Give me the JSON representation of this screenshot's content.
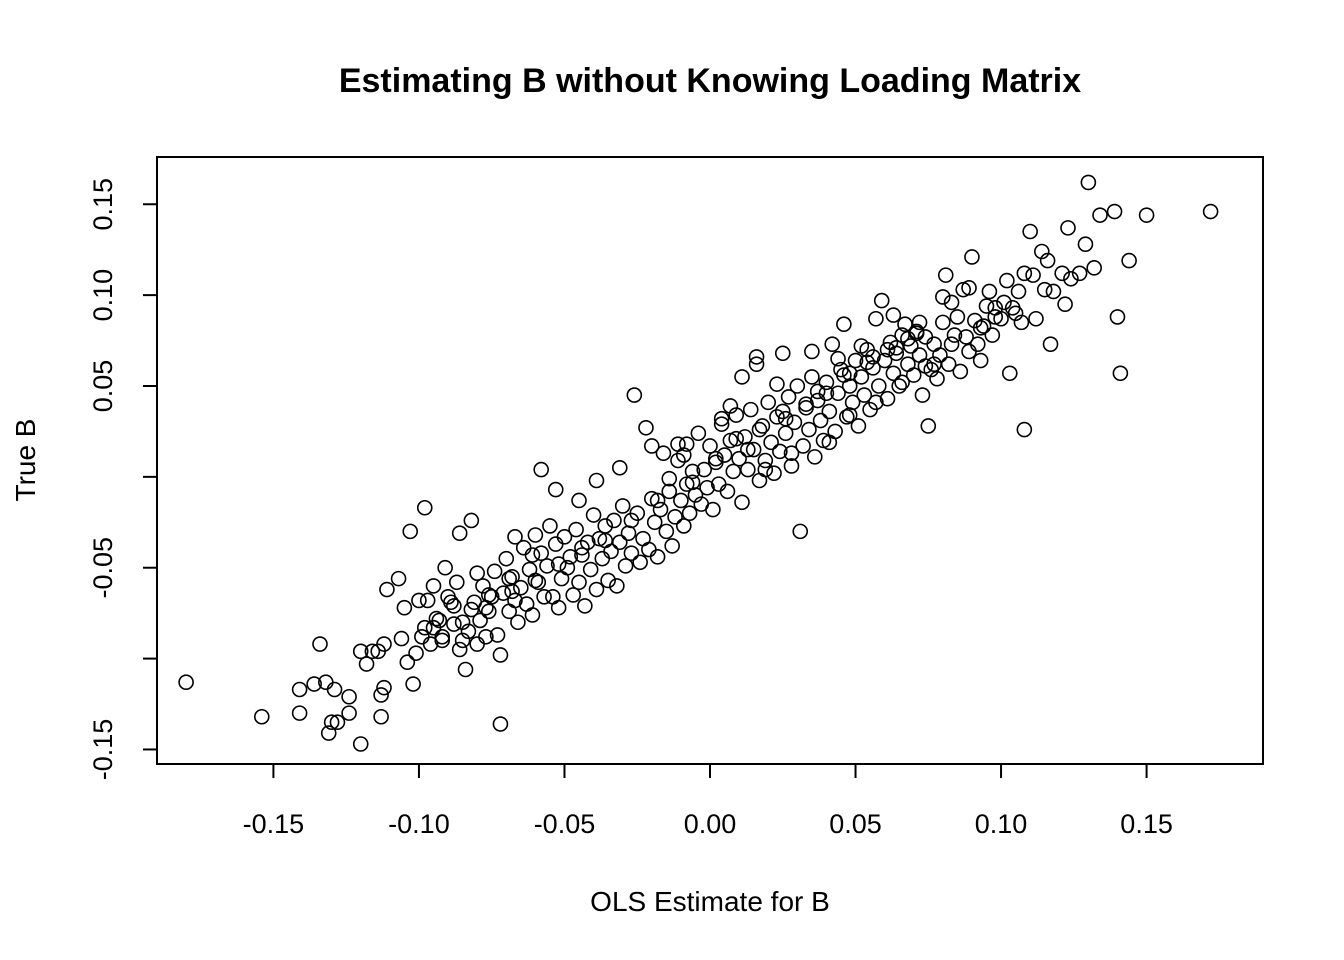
{
  "chart_data": {
    "type": "scatter",
    "title": "Estimating B without Knowing Loading Matrix",
    "xlabel": "OLS Estimate for B",
    "ylabel": "True B",
    "xlim": [
      -0.19,
      0.19
    ],
    "ylim": [
      -0.158,
      0.176
    ],
    "xticks": [
      -0.15,
      -0.1,
      -0.05,
      0.0,
      0.05,
      0.1,
      0.15
    ],
    "xtick_labels": [
      "-0.15",
      "-0.10",
      "-0.05",
      "0.00",
      "0.05",
      "0.10",
      "0.15"
    ],
    "yticks": [
      -0.15,
      -0.1,
      -0.05,
      0.0,
      0.05,
      0.1,
      0.15
    ],
    "ytick_labels": [
      "-0.15",
      "",
      "-0.05",
      "",
      "0.05",
      "0.10",
      "0.15"
    ],
    "grid": false,
    "marker": "open-circle",
    "marker_color": "#000000",
    "points": [
      [
        -0.18,
        -0.113
      ],
      [
        -0.154,
        -0.132
      ],
      [
        -0.141,
        -0.13
      ],
      [
        -0.141,
        -0.117
      ],
      [
        -0.136,
        -0.114
      ],
      [
        -0.134,
        -0.092
      ],
      [
        -0.132,
        -0.113
      ],
      [
        -0.131,
        -0.141
      ],
      [
        -0.13,
        -0.135
      ],
      [
        -0.129,
        -0.117
      ],
      [
        -0.128,
        -0.135
      ],
      [
        -0.124,
        -0.121
      ],
      [
        -0.124,
        -0.13
      ],
      [
        -0.12,
        -0.147
      ],
      [
        -0.12,
        -0.096
      ],
      [
        -0.116,
        -0.096
      ],
      [
        -0.114,
        -0.096
      ],
      [
        -0.113,
        -0.132
      ],
      [
        -0.113,
        -0.12
      ],
      [
        -0.112,
        -0.116
      ],
      [
        -0.112,
        -0.092
      ],
      [
        -0.111,
        -0.062
      ],
      [
        -0.107,
        -0.056
      ],
      [
        -0.105,
        -0.072
      ],
      [
        -0.104,
        -0.102
      ],
      [
        -0.102,
        -0.114
      ],
      [
        -0.101,
        -0.097
      ],
      [
        -0.1,
        -0.068
      ],
      [
        -0.099,
        -0.088
      ],
      [
        -0.098,
        -0.083
      ],
      [
        -0.097,
        -0.068
      ],
      [
        -0.096,
        -0.092
      ],
      [
        -0.095,
        -0.06
      ],
      [
        -0.094,
        -0.078
      ],
      [
        -0.093,
        -0.079
      ],
      [
        -0.092,
        -0.09
      ],
      [
        -0.091,
        -0.05
      ],
      [
        -0.09,
        -0.066
      ],
      [
        -0.089,
        -0.069
      ],
      [
        -0.088,
        -0.081
      ],
      [
        -0.087,
        -0.058
      ],
      [
        -0.086,
        -0.095
      ],
      [
        -0.085,
        -0.09
      ],
      [
        -0.084,
        -0.106
      ],
      [
        -0.083,
        -0.085
      ],
      [
        -0.082,
        -0.073
      ],
      [
        -0.081,
        -0.069
      ],
      [
        -0.08,
        -0.092
      ],
      [
        -0.08,
        -0.053
      ],
      [
        -0.079,
        -0.079
      ],
      [
        -0.078,
        -0.06
      ],
      [
        -0.077,
        -0.088
      ],
      [
        -0.076,
        -0.074
      ],
      [
        -0.075,
        -0.066
      ],
      [
        -0.074,
        -0.052
      ],
      [
        -0.073,
        -0.087
      ],
      [
        -0.072,
        -0.098
      ],
      [
        -0.072,
        -0.136
      ],
      [
        -0.071,
        -0.064
      ],
      [
        -0.07,
        -0.045
      ],
      [
        -0.069,
        -0.074
      ],
      [
        -0.068,
        -0.055
      ],
      [
        -0.067,
        -0.068
      ],
      [
        -0.066,
        -0.08
      ],
      [
        -0.065,
        -0.061
      ],
      [
        -0.064,
        -0.039
      ],
      [
        -0.063,
        -0.07
      ],
      [
        -0.062,
        -0.051
      ],
      [
        -0.061,
        -0.076
      ],
      [
        -0.06,
        -0.032
      ],
      [
        -0.059,
        -0.058
      ],
      [
        -0.058,
        -0.042
      ],
      [
        -0.057,
        -0.066
      ],
      [
        -0.056,
        -0.049
      ],
      [
        -0.055,
        -0.027
      ],
      [
        -0.054,
        -0.066
      ],
      [
        -0.053,
        -0.037
      ],
      [
        -0.052,
        -0.072
      ],
      [
        -0.051,
        -0.056
      ],
      [
        -0.05,
        -0.033
      ],
      [
        -0.049,
        -0.05
      ],
      [
        -0.048,
        -0.044
      ],
      [
        -0.047,
        -0.065
      ],
      [
        -0.046,
        -0.029
      ],
      [
        -0.045,
        -0.058
      ],
      [
        -0.044,
        -0.043
      ],
      [
        -0.043,
        -0.071
      ],
      [
        -0.042,
        -0.036
      ],
      [
        -0.041,
        -0.051
      ],
      [
        -0.04,
        -0.021
      ],
      [
        -0.039,
        -0.062
      ],
      [
        -0.038,
        -0.034
      ],
      [
        -0.037,
        -0.045
      ],
      [
        -0.036,
        -0.027
      ],
      [
        -0.035,
        -0.057
      ],
      [
        -0.034,
        -0.041
      ],
      [
        -0.033,
        -0.024
      ],
      [
        -0.032,
        -0.06
      ],
      [
        -0.031,
        -0.036
      ],
      [
        -0.03,
        -0.016
      ],
      [
        -0.029,
        -0.049
      ],
      [
        -0.028,
        -0.031
      ],
      [
        -0.027,
        -0.042
      ],
      [
        -0.026,
        0.045
      ],
      [
        -0.025,
        -0.02
      ],
      [
        -0.024,
        -0.047
      ],
      [
        -0.023,
        -0.034
      ],
      [
        -0.022,
        0.027
      ],
      [
        -0.021,
        -0.04
      ],
      [
        -0.02,
        -0.012
      ],
      [
        -0.019,
        -0.025
      ],
      [
        -0.018,
        -0.044
      ],
      [
        -0.017,
        -0.018
      ],
      [
        -0.016,
        0.013
      ],
      [
        -0.015,
        -0.03
      ],
      [
        -0.014,
        -0.008
      ],
      [
        -0.013,
        -0.038
      ],
      [
        -0.012,
        -0.022
      ],
      [
        -0.011,
        0.009
      ],
      [
        -0.01,
        -0.013
      ],
      [
        -0.009,
        -0.027
      ],
      [
        -0.008,
        -0.004
      ],
      [
        -0.007,
        -0.02
      ],
      [
        -0.006,
        0.003
      ],
      [
        -0.005,
        -0.01
      ],
      [
        -0.004,
        0.024
      ],
      [
        -0.003,
        -0.015
      ],
      [
        -0.002,
        0.004
      ],
      [
        -0.001,
        -0.006
      ],
      [
        0.0,
        0.017
      ],
      [
        0.001,
        -0.018
      ],
      [
        0.002,
        0.008
      ],
      [
        0.003,
        -0.004
      ],
      [
        0.004,
        0.029
      ],
      [
        0.005,
        0.012
      ],
      [
        0.006,
        -0.008
      ],
      [
        0.007,
        0.02
      ],
      [
        0.008,
        0.003
      ],
      [
        0.009,
        0.034
      ],
      [
        0.01,
        0.01
      ],
      [
        0.011,
        -0.014
      ],
      [
        0.012,
        0.022
      ],
      [
        0.013,
        0.004
      ],
      [
        0.014,
        0.037
      ],
      [
        0.015,
        0.015
      ],
      [
        0.016,
        0.066
      ],
      [
        0.017,
        -0.002
      ],
      [
        0.018,
        0.028
      ],
      [
        0.019,
        0.009
      ],
      [
        0.02,
        0.041
      ],
      [
        0.021,
        0.019
      ],
      [
        0.022,
        0.002
      ],
      [
        0.023,
        0.033
      ],
      [
        0.024,
        0.014
      ],
      [
        0.025,
        0.068
      ],
      [
        0.026,
        0.024
      ],
      [
        0.027,
        0.044
      ],
      [
        0.028,
        0.006
      ],
      [
        0.029,
        0.03
      ],
      [
        0.03,
        0.05
      ],
      [
        0.031,
        -0.03
      ],
      [
        0.032,
        0.017
      ],
      [
        0.033,
        0.038
      ],
      [
        0.034,
        0.026
      ],
      [
        0.035,
        0.055
      ],
      [
        0.036,
        0.011
      ],
      [
        0.037,
        0.042
      ],
      [
        0.038,
        0.031
      ],
      [
        0.039,
        0.02
      ],
      [
        0.04,
        0.052
      ],
      [
        0.041,
        0.036
      ],
      [
        0.042,
        0.073
      ],
      [
        0.043,
        0.025
      ],
      [
        0.044,
        0.046
      ],
      [
        0.045,
        0.059
      ],
      [
        0.046,
        0.084
      ],
      [
        0.047,
        0.033
      ],
      [
        0.048,
        0.05
      ],
      [
        0.049,
        0.041
      ],
      [
        0.05,
        0.064
      ],
      [
        0.051,
        0.028
      ],
      [
        0.052,
        0.055
      ],
      [
        0.053,
        0.045
      ],
      [
        0.054,
        0.07
      ],
      [
        0.055,
        0.037
      ],
      [
        0.056,
        0.06
      ],
      [
        0.057,
        0.087
      ],
      [
        0.058,
        0.05
      ],
      [
        0.059,
        0.097
      ],
      [
        0.06,
        0.064
      ],
      [
        0.061,
        0.043
      ],
      [
        0.062,
        0.074
      ],
      [
        0.063,
        0.057
      ],
      [
        0.064,
        0.068
      ],
      [
        0.065,
        0.05
      ],
      [
        0.066,
        0.078
      ],
      [
        0.067,
        0.084
      ],
      [
        0.068,
        0.062
      ],
      [
        0.069,
        0.072
      ],
      [
        0.07,
        0.056
      ],
      [
        0.071,
        0.08
      ],
      [
        0.072,
        0.067
      ],
      [
        0.073,
        0.045
      ],
      [
        0.074,
        0.077
      ],
      [
        0.075,
        0.028
      ],
      [
        0.076,
        0.059
      ],
      [
        0.077,
        0.073
      ],
      [
        0.078,
        0.054
      ],
      [
        0.079,
        0.067
      ],
      [
        0.08,
        0.085
      ],
      [
        0.081,
        0.111
      ],
      [
        0.082,
        0.062
      ],
      [
        0.083,
        0.096
      ],
      [
        0.084,
        0.078
      ],
      [
        0.085,
        0.088
      ],
      [
        0.086,
        0.058
      ],
      [
        0.087,
        0.103
      ],
      [
        0.088,
        0.077
      ],
      [
        0.089,
        0.069
      ],
      [
        0.09,
        0.121
      ],
      [
        0.091,
        0.086
      ],
      [
        0.092,
        0.073
      ],
      [
        0.093,
        0.064
      ],
      [
        0.094,
        0.083
      ],
      [
        0.095,
        0.094
      ],
      [
        0.096,
        0.102
      ],
      [
        0.097,
        0.078
      ],
      [
        0.098,
        0.088
      ],
      [
        0.1,
        0.087
      ],
      [
        0.101,
        0.096
      ],
      [
        0.102,
        0.108
      ],
      [
        0.103,
        0.057
      ],
      [
        0.104,
        0.093
      ],
      [
        0.105,
        0.09
      ],
      [
        0.106,
        0.102
      ],
      [
        0.107,
        0.085
      ],
      [
        0.108,
        0.112
      ],
      [
        0.108,
        0.026
      ],
      [
        0.11,
        0.135
      ],
      [
        0.111,
        0.111
      ],
      [
        0.112,
        0.087
      ],
      [
        0.114,
        0.124
      ],
      [
        0.115,
        0.103
      ],
      [
        0.116,
        0.119
      ],
      [
        0.117,
        0.073
      ],
      [
        0.118,
        0.102
      ],
      [
        0.121,
        0.112
      ],
      [
        0.122,
        0.095
      ],
      [
        0.123,
        0.137
      ],
      [
        0.124,
        0.109
      ],
      [
        0.127,
        0.112
      ],
      [
        0.129,
        0.128
      ],
      [
        0.13,
        0.162
      ],
      [
        0.132,
        0.115
      ],
      [
        0.134,
        0.144
      ],
      [
        0.139,
        0.146
      ],
      [
        0.14,
        0.088
      ],
      [
        0.141,
        0.057
      ],
      [
        0.144,
        0.119
      ],
      [
        0.15,
        0.144
      ],
      [
        0.172,
        0.146
      ],
      [
        -0.098,
        -0.017
      ],
      [
        -0.103,
        -0.03
      ],
      [
        -0.082,
        -0.024
      ],
      [
        -0.086,
        -0.031
      ],
      [
        -0.067,
        -0.033
      ],
      [
        -0.053,
        -0.007
      ],
      [
        -0.058,
        0.004
      ],
      [
        -0.045,
        -0.013
      ],
      [
        -0.039,
        -0.002
      ],
      [
        -0.031,
        0.005
      ],
      [
        -0.02,
        0.017
      ],
      [
        -0.011,
        0.018
      ],
      [
        0.007,
        0.039
      ],
      [
        0.016,
        0.062
      ],
      [
        0.023,
        0.051
      ],
      [
        0.035,
        0.069
      ],
      [
        0.044,
        0.065
      ],
      [
        0.052,
        0.072
      ],
      [
        0.063,
        0.089
      ],
      [
        0.072,
        0.085
      ],
      [
        0.08,
        0.099
      ],
      [
        0.089,
        0.104
      ],
      [
        0.098,
        0.093
      ],
      [
        0.011,
        0.055
      ],
      [
        0.004,
        0.032
      ],
      [
        -0.008,
        0.018
      ],
      [
        -0.014,
        -0.001
      ],
      [
        0.019,
        0.004
      ],
      [
        0.028,
        0.013
      ],
      [
        0.041,
        0.019
      ],
      [
        0.048,
        0.034
      ],
      [
        0.057,
        0.041
      ],
      [
        0.066,
        0.052
      ],
      [
        0.074,
        0.061
      ],
      [
        0.083,
        0.073
      ],
      [
        0.093,
        0.082
      ],
      [
        -0.061,
        -0.043
      ],
      [
        -0.069,
        -0.056
      ],
      [
        -0.076,
        -0.065
      ],
      [
        -0.088,
        -0.071
      ],
      [
        -0.095,
        -0.083
      ],
      [
        -0.106,
        -0.089
      ],
      [
        -0.118,
        -0.103
      ],
      [
        -0.027,
        -0.024
      ],
      [
        -0.018,
        -0.013
      ],
      [
        -0.006,
        -0.003
      ],
      [
        0.013,
        0.015
      ],
      [
        0.026,
        0.032
      ],
      [
        0.037,
        0.047
      ],
      [
        0.046,
        0.056
      ],
      [
        0.054,
        0.063
      ],
      [
        0.061,
        0.07
      ],
      [
        0.068,
        0.076
      ],
      [
        -0.036,
        -0.035
      ],
      [
        -0.044,
        -0.039
      ],
      [
        -0.052,
        -0.048
      ],
      [
        -0.06,
        -0.057
      ],
      [
        -0.068,
        -0.063
      ],
      [
        -0.077,
        -0.072
      ],
      [
        -0.085,
        -0.08
      ],
      [
        -0.092,
        -0.088
      ],
      [
        -0.009,
        0.012
      ],
      [
        0.002,
        0.01
      ],
      [
        0.009,
        0.021
      ],
      [
        0.017,
        0.026
      ],
      [
        0.025,
        0.036
      ],
      [
        0.033,
        0.04
      ],
      [
        0.04,
        0.046
      ],
      [
        0.048,
        0.057
      ],
      [
        0.056,
        0.066
      ],
      [
        0.064,
        0.071
      ],
      [
        0.071,
        0.079
      ],
      [
        0.077,
        0.062
      ]
    ]
  }
}
